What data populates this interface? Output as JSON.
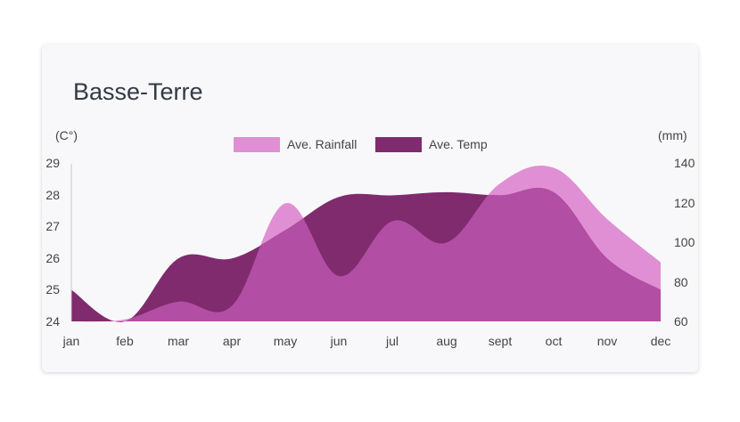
{
  "chart_data": {
    "type": "area",
    "title": "Basse-Terre",
    "categories": [
      "jan",
      "feb",
      "mar",
      "apr",
      "may",
      "jun",
      "jul",
      "aug",
      "sept",
      "oct",
      "nov",
      "dec"
    ],
    "y_left": {
      "label": "(C°)",
      "ticks": [
        "29",
        "28",
        "27",
        "26",
        "25",
        "24"
      ],
      "range": [
        24,
        29
      ]
    },
    "y_right": {
      "label": "(mm)",
      "ticks": [
        "140",
        "120",
        "100",
        "80",
        "60"
      ],
      "range": [
        60,
        140
      ]
    },
    "legend_position": "top-center",
    "series": [
      {
        "name": "Ave. Rainfall",
        "axis": "right",
        "color": "#e08fd4",
        "values": [
          60,
          61,
          70,
          68,
          120,
          83,
          111,
          100,
          130,
          138,
          112,
          90
        ]
      },
      {
        "name": "Ave. Temp",
        "axis": "left",
        "color": "#7f2b6e",
        "values": [
          25.0,
          24.0,
          26.0,
          26.0,
          26.9,
          27.95,
          28.0,
          28.1,
          28.0,
          28.1,
          26.0,
          25.0
        ]
      }
    ],
    "overlap_color": "#b24ea4"
  }
}
